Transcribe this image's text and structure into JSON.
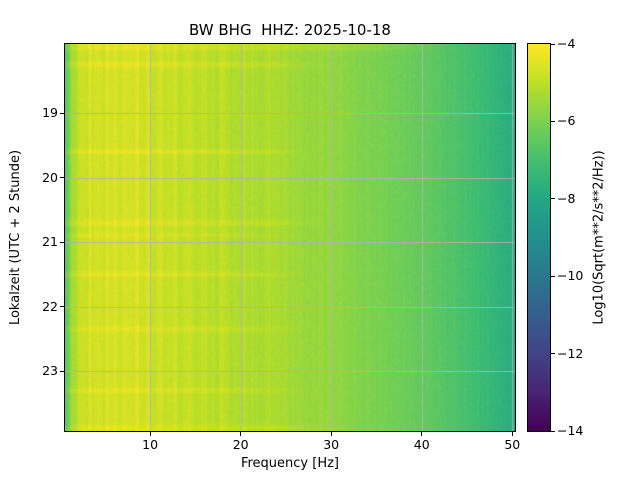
{
  "chart_data": {
    "type": "heatmap",
    "title": "BW BHG  HHZ: 2025-10-18",
    "xlabel": "Frequency [Hz]",
    "ylabel": "Lokalzeit (UTC + 2 Stunde)",
    "colorbar_label": "Log10(Sqrt(m**2/s**2/Hz))",
    "xlim": [
      0.6,
      50.3
    ],
    "ylim": [
      17.93,
      23.93
    ],
    "y_axis_inverted": true,
    "x_ticks": [
      10,
      20,
      30,
      40,
      50
    ],
    "y_ticks": [
      19,
      20,
      21,
      22,
      23
    ],
    "colorbar_ticks": [
      -4,
      -6,
      -8,
      -10,
      -12,
      -14
    ],
    "value_range": [
      -14,
      -4
    ],
    "background": "#ffffff",
    "grid_color": "#b2b2b2",
    "grid_on": true,
    "legend": "colorbar-right",
    "colormap": {
      "name": "viridis",
      "anchors": [
        [
          0.0,
          "#440154"
        ],
        [
          0.1,
          "#482475"
        ],
        [
          0.2,
          "#414487"
        ],
        [
          0.3,
          "#355f8d"
        ],
        [
          0.4,
          "#2a788e"
        ],
        [
          0.5,
          "#21918c"
        ],
        [
          0.6,
          "#22a884"
        ],
        [
          0.7,
          "#44bf70"
        ],
        [
          0.8,
          "#7ad151"
        ],
        [
          0.9,
          "#bddf26"
        ],
        [
          1.0,
          "#fde725"
        ]
      ]
    },
    "freq_profile": [
      [
        0.6,
        -6.5
      ],
      [
        0.85,
        -6.6
      ],
      [
        1.1,
        -5.8
      ],
      [
        1.6,
        -5.2
      ],
      [
        2.2,
        -5.0
      ],
      [
        3.0,
        -4.85
      ],
      [
        5.0,
        -4.75
      ],
      [
        7.0,
        -4.7
      ],
      [
        9.0,
        -4.75
      ],
      [
        11.0,
        -4.85
      ],
      [
        13.0,
        -4.95
      ],
      [
        15.0,
        -5.0
      ],
      [
        17.0,
        -5.1
      ],
      [
        20.0,
        -5.2
      ],
      [
        23.0,
        -5.3
      ],
      [
        25.5,
        -5.35
      ],
      [
        26.5,
        -5.5
      ],
      [
        29.0,
        -5.6
      ],
      [
        31.0,
        -5.7
      ],
      [
        33.0,
        -5.85
      ],
      [
        35.0,
        -6.0
      ],
      [
        37.0,
        -6.15
      ],
      [
        39.0,
        -6.3
      ],
      [
        41.0,
        -6.5
      ],
      [
        43.0,
        -6.7
      ],
      [
        45.0,
        -6.95
      ],
      [
        47.0,
        -7.25
      ],
      [
        49.0,
        -7.6
      ],
      [
        50.3,
        -7.8
      ]
    ],
    "freq_streaks": [
      {
        "f": 1.4,
        "w": 0.15,
        "amp": 0.2
      },
      {
        "f": 2.3,
        "w": 0.18,
        "amp": 0.25
      },
      {
        "f": 3.4,
        "w": 0.2,
        "amp": 0.3
      },
      {
        "f": 4.3,
        "w": 0.18,
        "amp": 0.25
      },
      {
        "f": 5.2,
        "w": 0.2,
        "amp": 0.3
      },
      {
        "f": 6.1,
        "w": 0.18,
        "amp": 0.2
      },
      {
        "f": 7.3,
        "w": 0.25,
        "amp": 0.3
      },
      {
        "f": 8.6,
        "w": 0.22,
        "amp": 0.25
      },
      {
        "f": 9.8,
        "w": 0.25,
        "amp": 0.3
      },
      {
        "f": 11.2,
        "w": 0.25,
        "amp": 0.25
      },
      {
        "f": 12.7,
        "w": 0.28,
        "amp": 0.3
      },
      {
        "f": 14.3,
        "w": 0.3,
        "amp": 0.25
      },
      {
        "f": 16.0,
        "w": 0.3,
        "amp": 0.2
      },
      {
        "f": 18.0,
        "w": 0.35,
        "amp": 0.2
      },
      {
        "f": 20.5,
        "w": 0.35,
        "amp": 0.15
      },
      {
        "f": 23.0,
        "w": 0.35,
        "amp": 0.15
      }
    ],
    "time_events": [
      {
        "t": 17.98,
        "w": 0.06,
        "amp": 0.3,
        "fmax": 35
      },
      {
        "t": 18.25,
        "w": 0.05,
        "amp": 0.3,
        "fmax": 22
      },
      {
        "t": 19.6,
        "w": 0.04,
        "amp": 0.35,
        "fmax": 20
      },
      {
        "t": 20.7,
        "w": 0.05,
        "amp": 0.3,
        "fmax": 22
      },
      {
        "t": 20.9,
        "w": 0.03,
        "amp": 0.25,
        "fmax": 18
      },
      {
        "t": 21.5,
        "w": 0.04,
        "amp": 0.3,
        "fmax": 20
      },
      {
        "t": 22.35,
        "w": 0.05,
        "amp": 0.25,
        "fmax": 20
      },
      {
        "t": 23.3,
        "w": 0.04,
        "amp": 0.3,
        "fmax": 20
      },
      {
        "t": 23.88,
        "w": 0.04,
        "amp": 0.25,
        "fmax": 25
      }
    ],
    "noise": {
      "column_amp": 0.13,
      "cell_amp": 0.09,
      "seed": 7
    }
  }
}
